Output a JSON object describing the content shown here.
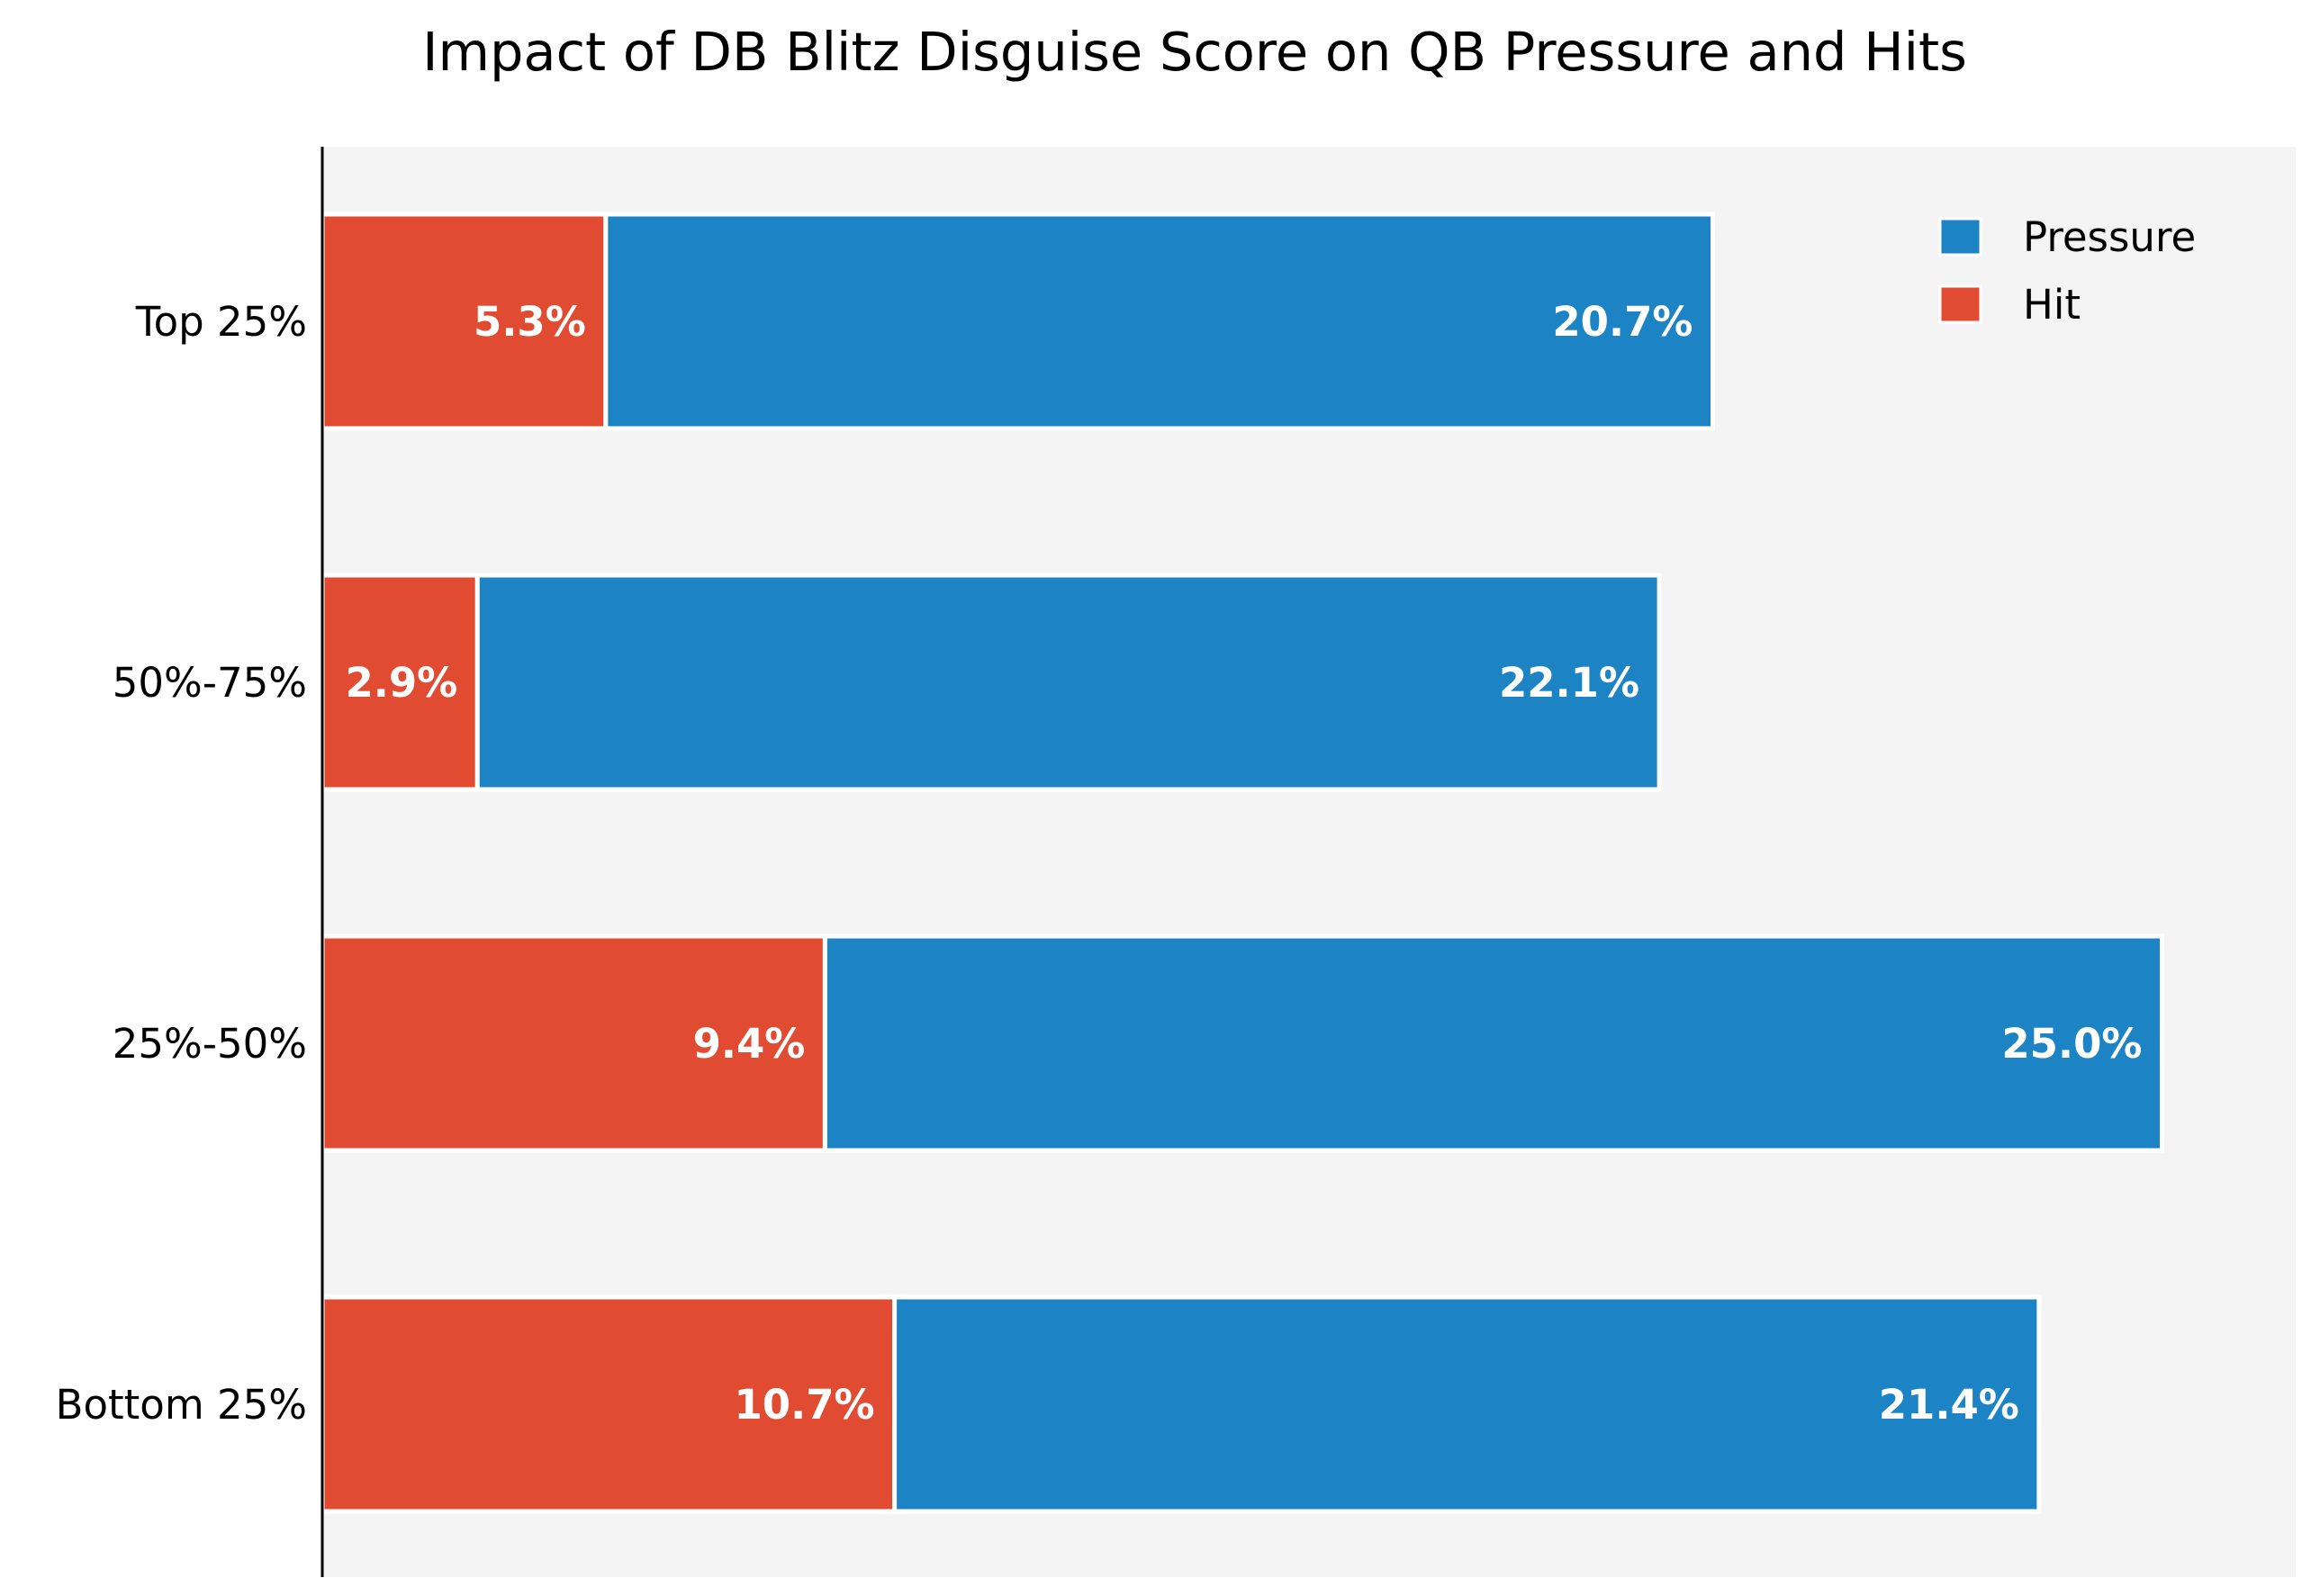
{
  "chart_data": {
    "type": "bar",
    "orientation": "horizontal",
    "stacked": true,
    "title": "Impact of DB Blitz Disguise Score on QB Pressure and Hits",
    "xlabel": "",
    "ylabel": "",
    "categories": [
      "Top 25%",
      "50%-75%",
      "25%-50%",
      "Bottom 25%"
    ],
    "series": [
      {
        "name": "Hit",
        "color": "#e04b32",
        "values": [
          5.3,
          2.9,
          9.4,
          10.7
        ],
        "labels": [
          "5.3%",
          "2.9%",
          "9.4%",
          "10.7%"
        ]
      },
      {
        "name": "Pressure",
        "color": "#1c83c5",
        "values": [
          20.7,
          22.1,
          25.0,
          21.4
        ],
        "labels": [
          "20.7%",
          "22.1%",
          "25.0%",
          "21.4%"
        ]
      }
    ],
    "legend_order": [
      "Pressure",
      "Hit"
    ],
    "xlim": [
      0,
      36.9
    ],
    "grid": false,
    "legend_position": "top-right",
    "plot_background": "#f4f4f4",
    "x_axis_visible": false
  }
}
